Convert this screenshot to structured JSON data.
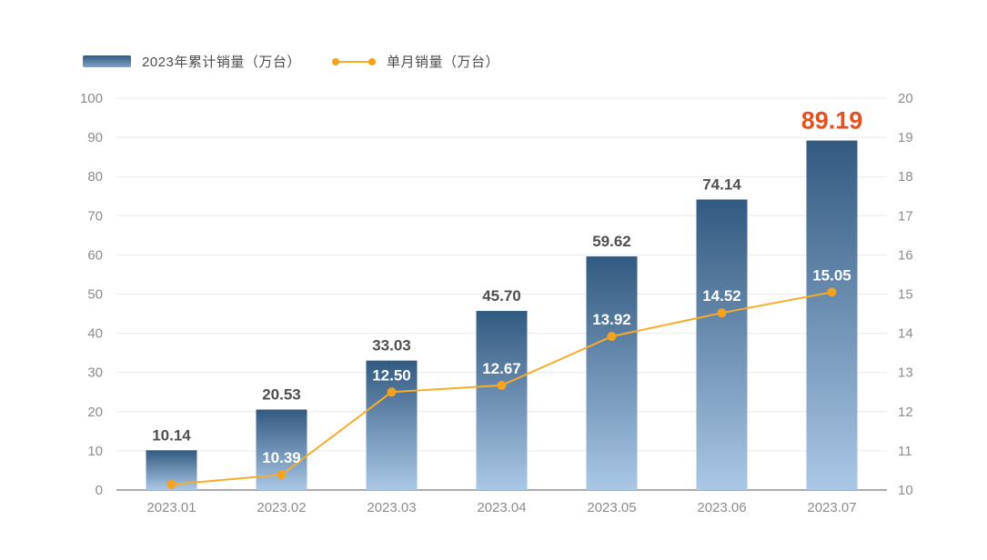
{
  "legend": {
    "bar_label": "2023年累计销量（万台）",
    "line_label": "单月销量（万台）"
  },
  "chart_data": {
    "type": "combo",
    "title": "",
    "categories": [
      "2023.01",
      "2023.02",
      "2023.03",
      "2023.04",
      "2023.05",
      "2023.06",
      "2023.07"
    ],
    "series": [
      {
        "name": "2023年累计销量（万台）",
        "type": "bar",
        "axis": "left",
        "values": [
          10.14,
          20.53,
          33.03,
          45.7,
          59.62,
          74.14,
          89.19
        ],
        "labels": [
          "10.14",
          "20.53",
          "33.03",
          "45.70",
          "59.62",
          "74.14",
          "89.19"
        ],
        "highlight_index": 6
      },
      {
        "name": "单月销量（万台）",
        "type": "line",
        "axis": "right",
        "values": [
          10.14,
          10.39,
          12.5,
          12.67,
          13.92,
          14.52,
          15.05
        ],
        "labels": [
          "",
          "10.39",
          "12.50",
          "12.67",
          "13.92",
          "14.52",
          "15.05"
        ]
      }
    ],
    "left_axis": {
      "min": 0,
      "max": 100,
      "step": 10,
      "ticks": [
        "0",
        "10",
        "20",
        "30",
        "40",
        "50",
        "60",
        "70",
        "80",
        "90",
        "100"
      ]
    },
    "right_axis": {
      "min": 10,
      "max": 20,
      "step": 1,
      "ticks": [
        "10",
        "11",
        "12",
        "13",
        "14",
        "15",
        "16",
        "17",
        "18",
        "19",
        "20"
      ]
    },
    "grid": true,
    "legend_position": "top",
    "colors": {
      "bar_top": "#325a80",
      "bar_bottom": "#aac7e6",
      "line": "#f9ac2a",
      "marker": "#f6a21c",
      "bar_label": "#4f4f4f",
      "highlight_label": "#e4501e",
      "line_label": "#ffffff",
      "tick": "#8c8c8c",
      "grid_line": "#e9e9e9",
      "axis_line": "#8f8f8f"
    }
  }
}
